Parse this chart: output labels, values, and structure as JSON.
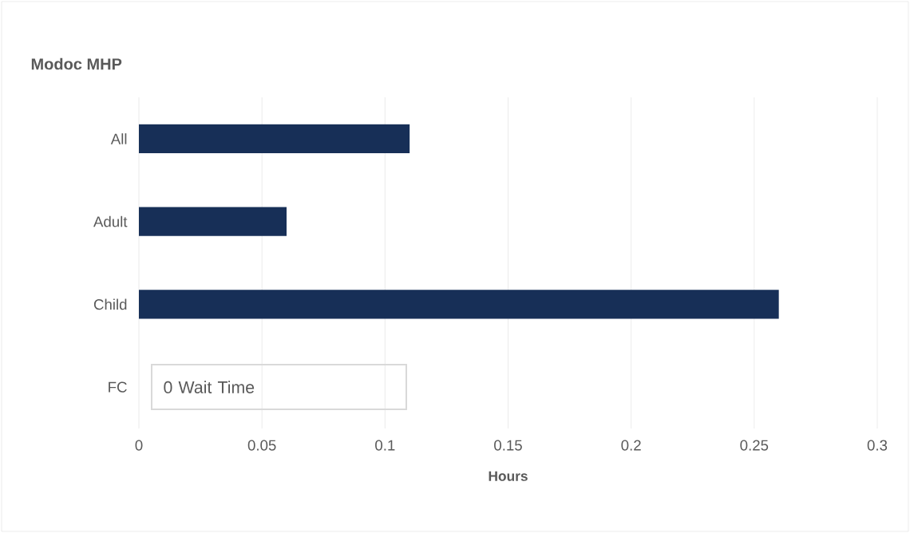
{
  "chart_data": {
    "type": "bar",
    "orientation": "horizontal",
    "title": "Modoc MHP",
    "xlabel": "Hours",
    "categories": [
      "All",
      "Adult",
      "Child",
      "FC"
    ],
    "values": [
      0.11,
      0.06,
      0.26,
      0
    ],
    "color": "#172f57",
    "xlim": [
      0,
      0.3
    ],
    "xticks": [
      0,
      0.05,
      0.1,
      0.15,
      0.2,
      0.25,
      0.3
    ],
    "grid": "x",
    "annotations": [
      {
        "text": "0 Wait Time",
        "x": 0,
        "y": "FC"
      }
    ]
  }
}
